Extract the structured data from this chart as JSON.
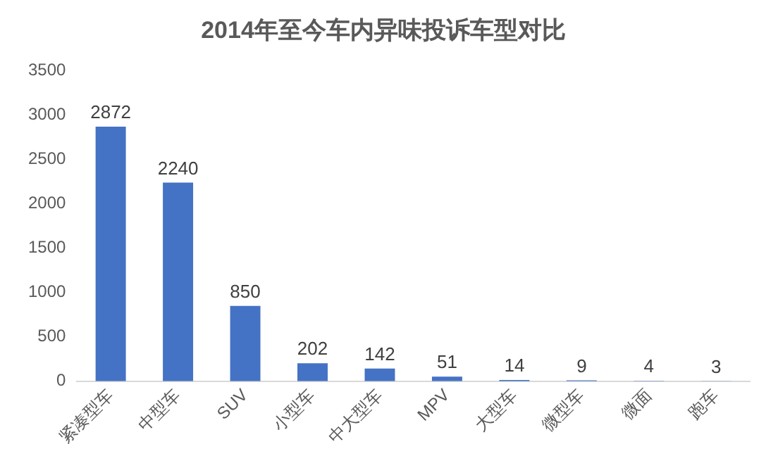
{
  "chart_data": {
    "type": "bar",
    "title": "2014年至今车内异味投诉车型对比",
    "categories": [
      "紧凑型车",
      "中型车",
      "SUV",
      "小型车",
      "中大型车",
      "MPV",
      "大型车",
      "微型车",
      "微面",
      "跑车"
    ],
    "values": [
      2872,
      2240,
      850,
      202,
      142,
      51,
      14,
      9,
      4,
      3
    ],
    "color": "#4472c4",
    "ylim": [
      0,
      3500
    ],
    "yticks": [
      0,
      500,
      1000,
      1500,
      2000,
      2500,
      3000,
      3500
    ],
    "grid": false,
    "data_labels": true
  }
}
